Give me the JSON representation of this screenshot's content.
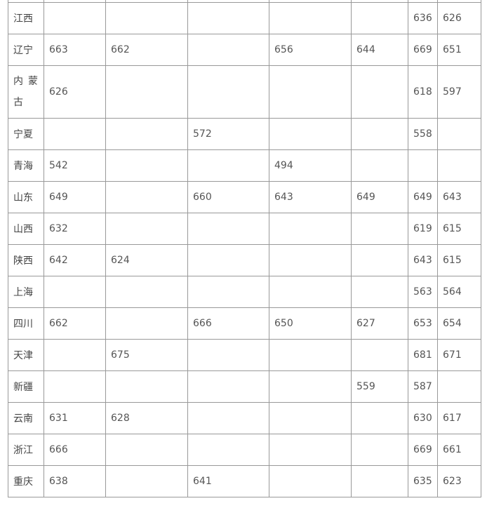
{
  "table": {
    "rows": [
      {
        "province": "江西",
        "cells": [
          "",
          "",
          "",
          "",
          "",
          "636",
          "626"
        ]
      },
      {
        "province": "辽宁",
        "cells": [
          "663",
          "662",
          "",
          "656",
          "644",
          "669",
          "651"
        ]
      },
      {
        "province": "内蒙古",
        "cells": [
          "626",
          "",
          "",
          "",
          "",
          "618",
          "597"
        ]
      },
      {
        "province": "宁夏",
        "cells": [
          "",
          "",
          "572",
          "",
          "",
          "558",
          ""
        ]
      },
      {
        "province": "青海",
        "cells": [
          "542",
          "",
          "",
          "494",
          "",
          "",
          ""
        ]
      },
      {
        "province": "山东",
        "cells": [
          "649",
          "",
          "660",
          "643",
          "649",
          "649",
          "643"
        ]
      },
      {
        "province": "山西",
        "cells": [
          "632",
          "",
          "",
          "",
          "",
          "619",
          "615"
        ]
      },
      {
        "province": "陕西",
        "cells": [
          "642",
          "624",
          "",
          "",
          "",
          "643",
          "615"
        ]
      },
      {
        "province": "上海",
        "cells": [
          "",
          "",
          "",
          "",
          "",
          "563",
          "564"
        ]
      },
      {
        "province": "四川",
        "cells": [
          "662",
          "",
          "666",
          "650",
          "627",
          "653",
          "654"
        ]
      },
      {
        "province": "天津",
        "cells": [
          "",
          "675",
          "",
          "",
          "",
          "681",
          "671"
        ]
      },
      {
        "province": "新疆",
        "cells": [
          "",
          "",
          "",
          "",
          "559",
          "587",
          ""
        ]
      },
      {
        "province": "云南",
        "cells": [
          "631",
          "628",
          "",
          "",
          "",
          "630",
          "617"
        ]
      },
      {
        "province": "浙江",
        "cells": [
          "666",
          "",
          "",
          "",
          "",
          "669",
          "661"
        ]
      },
      {
        "province": "重庆",
        "cells": [
          "638",
          "",
          "641",
          "",
          "",
          "635",
          "623"
        ]
      }
    ]
  }
}
